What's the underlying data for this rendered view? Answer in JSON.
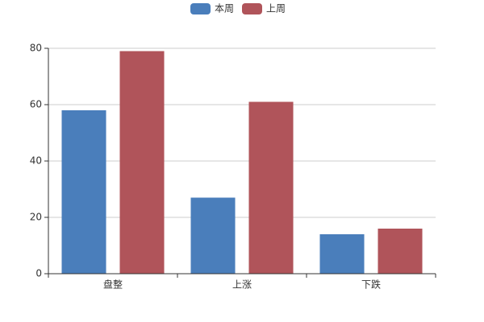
{
  "chart_data": {
    "type": "bar",
    "categories": [
      "盘整",
      "上涨",
      "下跌"
    ],
    "series": [
      {
        "name": "本周",
        "color": "#4a7ebb",
        "values": [
          58,
          27,
          14
        ]
      },
      {
        "name": "上周",
        "color": "#b0545a",
        "values": [
          79,
          61,
          16
        ]
      }
    ],
    "ylim": [
      0,
      80
    ],
    "yticks": [
      0,
      20,
      40,
      60,
      80
    ],
    "grid": true,
    "legend": "top"
  }
}
